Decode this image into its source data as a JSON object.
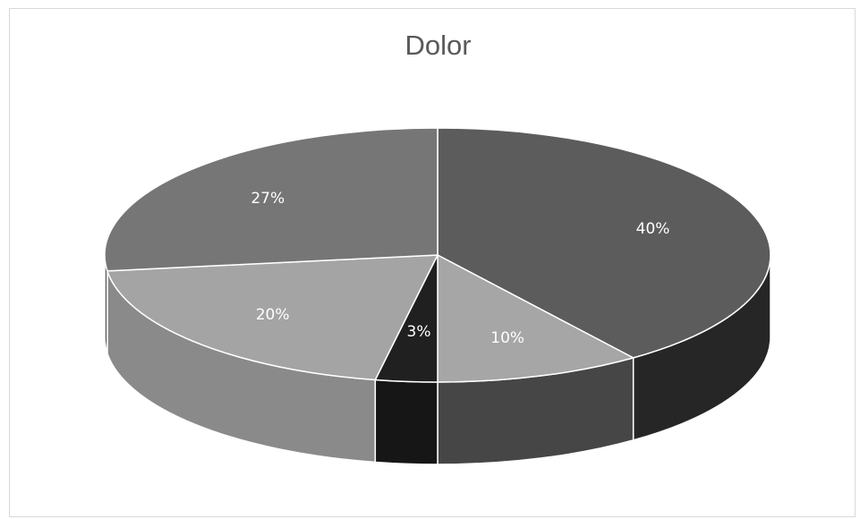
{
  "chart_data": {
    "type": "pie",
    "title": "Dolor",
    "slices": [
      {
        "label": "40%",
        "value": 40,
        "top": "#5c5c5c",
        "side": "#262626"
      },
      {
        "label": "10%",
        "value": 10,
        "top": "#a6a6a6",
        "side": "#464646"
      },
      {
        "label": "3%",
        "value": 3,
        "top": "#202020",
        "side": "#161616"
      },
      {
        "label": "20%",
        "value": 20,
        "top": "#a4a4a4",
        "side": "#8a8a8a"
      },
      {
        "label": "27%",
        "value": 27,
        "top": "#767676",
        "side": "#5e5e5e"
      }
    ],
    "label_color": "#ffffff",
    "label_color_dark": "#1a1a1a",
    "style": "3d",
    "legend": "none"
  }
}
